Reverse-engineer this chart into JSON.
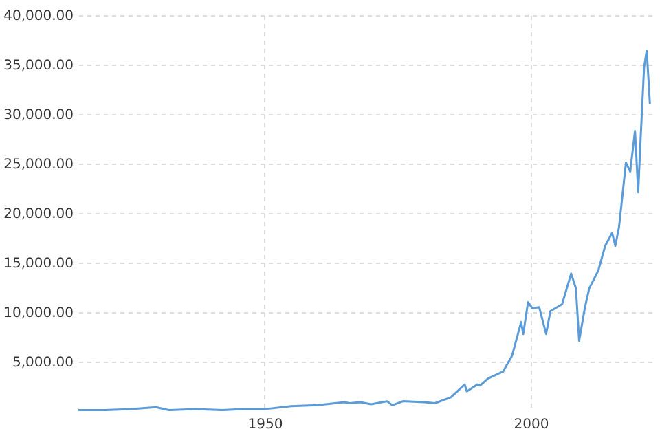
{
  "chart_data": {
    "type": "line",
    "x": [
      1915,
      1920,
      1925,
      1929.6,
      1932,
      1937,
      1942,
      1946,
      1950,
      1955,
      1960,
      1965,
      1966,
      1968,
      1970,
      1973,
      1974,
      1976,
      1980,
      1982,
      1985,
      1987.6,
      1988,
      1990,
      1990.5,
      1992,
      1994.8,
      1996.5,
      1998.2,
      1998.6,
      1999.5,
      2000.3,
      2001.6,
      2002.9,
      2003.7,
      2005.9,
      2007.6,
      2008.5,
      2009.1,
      2010.2,
      2011,
      2012.7,
      2014,
      2015.3,
      2015.9,
      2016.6,
      2017.9,
      2018.7,
      2019.6,
      2020.2,
      2020.6,
      2021.3,
      2021.8,
      2022.2,
      2022.4
    ],
    "series": [
      {
        "color": "#5b9bd8",
        "values": [
          100,
          100,
          200,
          400,
          100,
          200,
          100,
          200,
          200,
          500,
          600,
          900,
          800,
          900,
          700,
          1000,
          600,
          1000,
          900,
          800,
          1400,
          2700,
          2000,
          2700,
          2600,
          3300,
          4000,
          5600,
          9000,
          7800,
          11000,
          10400,
          10500,
          7800,
          10100,
          10800,
          13900,
          12400,
          7100,
          10500,
          12400,
          14200,
          16700,
          18000,
          16700,
          18600,
          25100,
          24200,
          28300,
          22100,
          26900,
          34700,
          36400,
          32900,
          31000
        ]
      }
    ],
    "xlim": [
      1915,
      2023
    ],
    "xticks": [
      1950,
      2000
    ],
    "ylim": [
      0,
      40000
    ],
    "yticks": [
      {
        "value": 5000,
        "label": "5,000.00"
      },
      {
        "value": 10000,
        "label": "10,000.00"
      },
      {
        "value": 15000,
        "label": "15,000.00"
      },
      {
        "value": 20000,
        "label": "20,000.00"
      },
      {
        "value": 25000,
        "label": "25,000.00"
      },
      {
        "value": 30000,
        "label": "30,000.00"
      },
      {
        "value": 35000,
        "label": "35,000.00"
      },
      {
        "value": 40000,
        "label": "40,000.00"
      }
    ],
    "grid": true,
    "line_style": "solid"
  }
}
